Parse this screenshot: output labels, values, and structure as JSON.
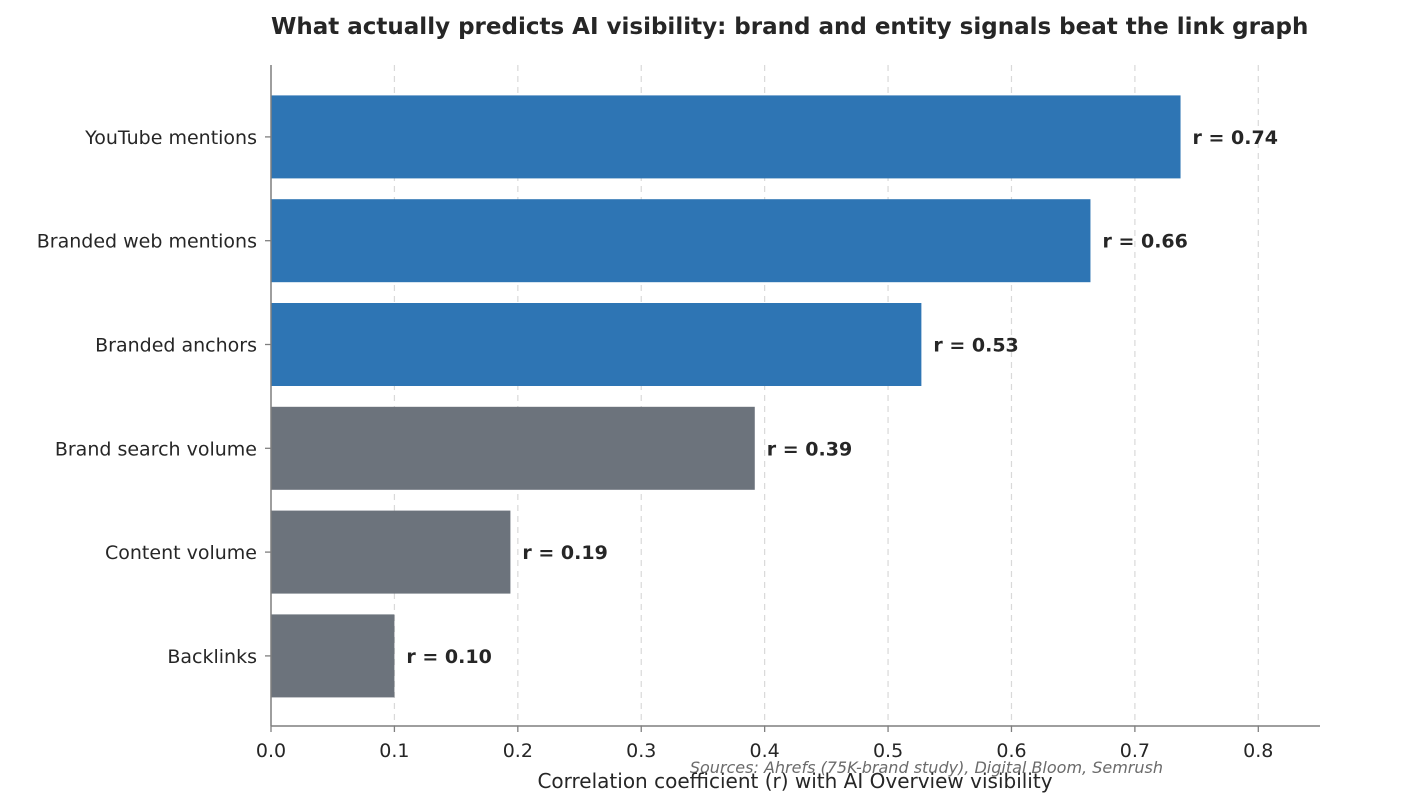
{
  "chart_data": {
    "type": "bar",
    "orientation": "horizontal",
    "title": "What actually predicts AI visibility: brand and entity signals beat the link graph",
    "xlabel": "Correlation coefficient (r) with AI Overview visibility",
    "ylabel": "",
    "xlim": [
      0,
      0.85
    ],
    "xticks": [
      0.0,
      0.1,
      0.2,
      0.3,
      0.4,
      0.5,
      0.6,
      0.7,
      0.8
    ],
    "xtick_labels": [
      "0.0",
      "0.1",
      "0.2",
      "0.3",
      "0.4",
      "0.5",
      "0.6",
      "0.7",
      "0.8"
    ],
    "grid": "x, dashed",
    "categories": [
      "YouTube mentions",
      "Branded web mentions",
      "Branded anchors",
      "Brand search volume",
      "Content volume",
      "Backlinks"
    ],
    "values": [
      0.737,
      0.664,
      0.527,
      0.392,
      0.194,
      0.1
    ],
    "data_labels": [
      "r = 0.74",
      "r = 0.66",
      "r = 0.53",
      "r = 0.39",
      "r = 0.19",
      "r = 0.10"
    ],
    "bar_colors": [
      "#2e75b4",
      "#2e75b4",
      "#2e75b4",
      "#6c737c",
      "#6c737c",
      "#6c737c"
    ],
    "source_note": "Sources: Ahrefs (75K-brand study), Digital Bloom, Semrush"
  },
  "colors": {
    "brand_signal": "#2e75b4",
    "other_signal": "#6c737c",
    "text": "#262626",
    "spine": "#7f7f7f",
    "grid": "#d9d9d9"
  }
}
